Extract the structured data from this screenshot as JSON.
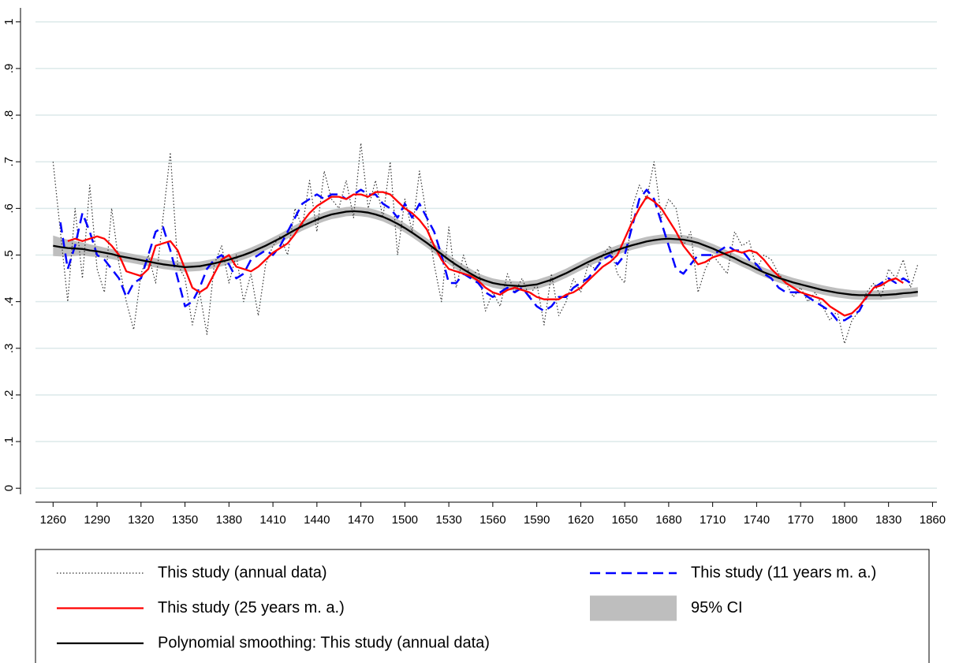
{
  "chart_data": {
    "type": "line",
    "x": [
      1260,
      1265,
      1270,
      1275,
      1280,
      1285,
      1290,
      1295,
      1300,
      1305,
      1310,
      1315,
      1320,
      1325,
      1330,
      1335,
      1340,
      1345,
      1350,
      1355,
      1360,
      1365,
      1370,
      1375,
      1380,
      1385,
      1390,
      1395,
      1400,
      1405,
      1410,
      1415,
      1420,
      1425,
      1430,
      1435,
      1440,
      1445,
      1450,
      1455,
      1460,
      1465,
      1470,
      1475,
      1480,
      1485,
      1490,
      1495,
      1500,
      1505,
      1510,
      1515,
      1520,
      1525,
      1530,
      1535,
      1540,
      1545,
      1550,
      1555,
      1560,
      1565,
      1570,
      1575,
      1580,
      1585,
      1590,
      1595,
      1600,
      1605,
      1610,
      1615,
      1620,
      1625,
      1630,
      1635,
      1640,
      1645,
      1650,
      1655,
      1660,
      1665,
      1670,
      1675,
      1680,
      1685,
      1690,
      1695,
      1700,
      1705,
      1710,
      1715,
      1720,
      1725,
      1730,
      1735,
      1740,
      1745,
      1750,
      1755,
      1760,
      1765,
      1770,
      1775,
      1780,
      1785,
      1790,
      1795,
      1800,
      1805,
      1810,
      1815,
      1820,
      1825,
      1830,
      1835,
      1840,
      1845,
      1850
    ],
    "series": [
      {
        "name": "This study (annual data)",
        "color": "#333333",
        "style": "dotted",
        "values": [
          0.7,
          0.55,
          0.4,
          0.6,
          0.45,
          0.65,
          0.47,
          0.42,
          0.6,
          0.48,
          0.4,
          0.34,
          0.46,
          0.5,
          0.44,
          0.58,
          0.72,
          0.48,
          0.45,
          0.35,
          0.42,
          0.33,
          0.48,
          0.52,
          0.44,
          0.5,
          0.4,
          0.46,
          0.37,
          0.48,
          0.52,
          0.54,
          0.5,
          0.6,
          0.56,
          0.66,
          0.55,
          0.68,
          0.62,
          0.6,
          0.66,
          0.58,
          0.74,
          0.6,
          0.66,
          0.58,
          0.7,
          0.5,
          0.62,
          0.55,
          0.68,
          0.58,
          0.48,
          0.4,
          0.56,
          0.43,
          0.5,
          0.45,
          0.47,
          0.38,
          0.42,
          0.39,
          0.46,
          0.42,
          0.45,
          0.41,
          0.44,
          0.35,
          0.46,
          0.37,
          0.4,
          0.45,
          0.42,
          0.48,
          0.47,
          0.5,
          0.52,
          0.46,
          0.44,
          0.6,
          0.65,
          0.62,
          0.7,
          0.58,
          0.62,
          0.6,
          0.52,
          0.55,
          0.42,
          0.47,
          0.5,
          0.48,
          0.46,
          0.55,
          0.52,
          0.53,
          0.47,
          0.5,
          0.49,
          0.46,
          0.44,
          0.41,
          0.43,
          0.4,
          0.42,
          0.39,
          0.36,
          0.38,
          0.31,
          0.36,
          0.38,
          0.42,
          0.44,
          0.41,
          0.47,
          0.45,
          0.49,
          0.43,
          0.48
        ]
      },
      {
        "name": "This study (11 years m. a.)",
        "color": "#0000ff",
        "style": "dashed",
        "values": [
          null,
          0.57,
          0.47,
          0.52,
          0.59,
          0.55,
          0.5,
          0.49,
          0.47,
          0.45,
          0.41,
          0.44,
          0.45,
          0.5,
          0.55,
          0.56,
          0.51,
          0.45,
          0.39,
          0.4,
          0.43,
          0.47,
          0.49,
          0.5,
          0.48,
          0.45,
          0.46,
          0.49,
          0.5,
          0.51,
          0.5,
          0.52,
          0.55,
          0.58,
          0.61,
          0.62,
          0.63,
          0.62,
          0.63,
          0.63,
          0.62,
          0.63,
          0.64,
          0.63,
          0.63,
          0.61,
          0.6,
          0.58,
          0.61,
          0.58,
          0.61,
          0.58,
          0.55,
          0.5,
          0.44,
          0.44,
          0.46,
          0.45,
          0.44,
          0.42,
          0.41,
          0.42,
          0.43,
          0.42,
          0.43,
          0.41,
          0.39,
          0.38,
          0.39,
          0.41,
          0.41,
          0.43,
          0.44,
          0.45,
          0.47,
          0.49,
          0.5,
          0.48,
          0.5,
          0.56,
          0.62,
          0.64,
          0.62,
          0.57,
          0.52,
          0.47,
          0.46,
          0.48,
          0.5,
          0.5,
          0.5,
          0.51,
          0.52,
          0.51,
          0.51,
          0.49,
          0.48,
          0.46,
          0.45,
          0.43,
          0.42,
          0.42,
          0.42,
          0.41,
          0.4,
          0.39,
          0.38,
          0.36,
          0.36,
          0.37,
          0.38,
          0.41,
          0.43,
          0.44,
          0.45,
          0.44,
          0.45,
          0.44,
          null
        ]
      },
      {
        "name": "This study (25 years m. a.)",
        "color": "#ff0000",
        "style": "solid",
        "values": [
          null,
          null,
          0.53,
          0.535,
          0.53,
          0.535,
          0.54,
          0.535,
          0.52,
          0.5,
          0.465,
          0.46,
          0.455,
          0.47,
          0.52,
          0.525,
          0.53,
          0.51,
          0.47,
          0.43,
          0.42,
          0.43,
          0.46,
          0.49,
          0.5,
          0.475,
          0.47,
          0.465,
          0.475,
          0.49,
          0.505,
          0.515,
          0.525,
          0.545,
          0.57,
          0.59,
          0.605,
          0.615,
          0.625,
          0.625,
          0.62,
          0.63,
          0.63,
          0.625,
          0.635,
          0.635,
          0.63,
          0.615,
          0.6,
          0.59,
          0.575,
          0.555,
          0.52,
          0.49,
          0.47,
          0.465,
          0.46,
          0.455,
          0.445,
          0.43,
          0.42,
          0.415,
          0.425,
          0.43,
          0.425,
          0.42,
          0.41,
          0.405,
          0.405,
          0.405,
          0.415,
          0.42,
          0.43,
          0.445,
          0.46,
          0.475,
          0.485,
          0.5,
          0.535,
          0.57,
          0.6,
          0.625,
          0.615,
          0.6,
          0.575,
          0.55,
          0.52,
          0.5,
          0.48,
          0.485,
          0.495,
          0.5,
          0.505,
          0.51,
          0.505,
          0.51,
          0.505,
          0.49,
          0.47,
          0.455,
          0.44,
          0.43,
          0.42,
          0.415,
          0.41,
          0.405,
          0.39,
          0.38,
          0.37,
          0.375,
          0.39,
          0.41,
          0.43,
          0.435,
          0.445,
          0.45,
          0.44,
          null,
          null
        ]
      },
      {
        "name": "95% CI",
        "color": "#bebebe",
        "style": "band",
        "lower": [
          0.498,
          0.497,
          0.497,
          0.498,
          0.499,
          0.497,
          0.496,
          0.494,
          0.491,
          0.488,
          0.485,
          0.482,
          0.479,
          0.476,
          0.473,
          0.47,
          0.468,
          0.466,
          0.464,
          0.465,
          0.466,
          0.469,
          0.472,
          0.476,
          0.48,
          0.485,
          0.49,
          0.496,
          0.503,
          0.51,
          0.518,
          0.526,
          0.535,
          0.544,
          0.552,
          0.559,
          0.566,
          0.572,
          0.577,
          0.58,
          0.583,
          0.584,
          0.583,
          0.581,
          0.577,
          0.572,
          0.565,
          0.557,
          0.548,
          0.538,
          0.527,
          0.516,
          0.504,
          0.492,
          0.48,
          0.469,
          0.459,
          0.45,
          0.441,
          0.435,
          0.43,
          0.427,
          0.425,
          0.424,
          0.423,
          0.425,
          0.427,
          0.432,
          0.437,
          0.444,
          0.451,
          0.459,
          0.467,
          0.475,
          0.482,
          0.489,
          0.495,
          0.501,
          0.506,
          0.511,
          0.515,
          0.519,
          0.522,
          0.524,
          0.525,
          0.524,
          0.523,
          0.52,
          0.516,
          0.51,
          0.504,
          0.497,
          0.49,
          0.483,
          0.475,
          0.468,
          0.46,
          0.453,
          0.447,
          0.441,
          0.436,
          0.431,
          0.427,
          0.423,
          0.419,
          0.415,
          0.412,
          0.409,
          0.407,
          0.405,
          0.404,
          0.404,
          0.404,
          0.404,
          0.405,
          0.406,
          0.408,
          0.409,
          0.411
        ],
        "upper": [
          0.542,
          0.537,
          0.533,
          0.53,
          0.527,
          0.523,
          0.52,
          0.516,
          0.513,
          0.508,
          0.505,
          0.502,
          0.499,
          0.496,
          0.493,
          0.49,
          0.488,
          0.486,
          0.484,
          0.485,
          0.486,
          0.489,
          0.492,
          0.496,
          0.5,
          0.505,
          0.51,
          0.516,
          0.523,
          0.53,
          0.538,
          0.546,
          0.555,
          0.564,
          0.572,
          0.579,
          0.586,
          0.592,
          0.597,
          0.6,
          0.603,
          0.604,
          0.603,
          0.601,
          0.597,
          0.592,
          0.585,
          0.577,
          0.568,
          0.558,
          0.547,
          0.536,
          0.524,
          0.512,
          0.5,
          0.489,
          0.479,
          0.47,
          0.461,
          0.455,
          0.45,
          0.447,
          0.445,
          0.444,
          0.443,
          0.445,
          0.447,
          0.452,
          0.457,
          0.464,
          0.471,
          0.479,
          0.487,
          0.495,
          0.502,
          0.509,
          0.515,
          0.521,
          0.526,
          0.531,
          0.535,
          0.539,
          0.542,
          0.544,
          0.545,
          0.544,
          0.543,
          0.54,
          0.536,
          0.53,
          0.524,
          0.517,
          0.51,
          0.503,
          0.495,
          0.488,
          0.48,
          0.473,
          0.467,
          0.461,
          0.456,
          0.451,
          0.447,
          0.443,
          0.439,
          0.435,
          0.432,
          0.429,
          0.427,
          0.425,
          0.424,
          0.424,
          0.424,
          0.424,
          0.425,
          0.426,
          0.428,
          0.429,
          0.431
        ]
      },
      {
        "name": "Polynomial smoothing: This study (annual data)",
        "color": "#000000",
        "style": "solid",
        "values": [
          0.52,
          0.517,
          0.515,
          0.514,
          0.513,
          0.51,
          0.508,
          0.505,
          0.502,
          0.498,
          0.495,
          0.492,
          0.489,
          0.486,
          0.483,
          0.48,
          0.478,
          0.476,
          0.474,
          0.475,
          0.476,
          0.479,
          0.482,
          0.486,
          0.49,
          0.495,
          0.5,
          0.506,
          0.513,
          0.52,
          0.528,
          0.536,
          0.545,
          0.554,
          0.562,
          0.569,
          0.576,
          0.582,
          0.587,
          0.59,
          0.593,
          0.594,
          0.593,
          0.591,
          0.587,
          0.582,
          0.575,
          0.567,
          0.558,
          0.548,
          0.537,
          0.526,
          0.514,
          0.502,
          0.49,
          0.479,
          0.469,
          0.46,
          0.451,
          0.445,
          0.44,
          0.437,
          0.435,
          0.434,
          0.433,
          0.435,
          0.437,
          0.442,
          0.447,
          0.454,
          0.461,
          0.469,
          0.477,
          0.485,
          0.492,
          0.499,
          0.505,
          0.511,
          0.516,
          0.521,
          0.525,
          0.529,
          0.532,
          0.534,
          0.535,
          0.534,
          0.533,
          0.53,
          0.526,
          0.52,
          0.514,
          0.507,
          0.5,
          0.493,
          0.485,
          0.478,
          0.47,
          0.463,
          0.457,
          0.451,
          0.446,
          0.441,
          0.437,
          0.433,
          0.429,
          0.425,
          0.422,
          0.419,
          0.417,
          0.415,
          0.414,
          0.414,
          0.414,
          0.414,
          0.415,
          0.416,
          0.418,
          0.419,
          0.421
        ]
      }
    ],
    "xlim": [
      1248,
      1863
    ],
    "ylim": [
      -0.03,
      1.03
    ],
    "xticks": [
      1260,
      1290,
      1320,
      1350,
      1380,
      1410,
      1440,
      1470,
      1500,
      1530,
      1560,
      1590,
      1620,
      1650,
      1680,
      1710,
      1740,
      1770,
      1800,
      1830,
      1860
    ],
    "yticks": [
      0,
      {
        "value": 0.1,
        "label": ".1"
      },
      {
        "value": 0.2,
        "label": ".2"
      },
      {
        "value": 0.3,
        "label": ".3"
      },
      {
        "value": 0.4,
        "label": ".4"
      },
      {
        "value": 0.5,
        "label": ".5"
      },
      {
        "value": 0.6,
        "label": ".6"
      },
      {
        "value": 0.7,
        "label": ".7"
      },
      {
        "value": 0.8,
        "label": ".8"
      },
      {
        "value": 0.9,
        "label": ".9"
      },
      1
    ],
    "grid": true,
    "legend": "bottom"
  }
}
